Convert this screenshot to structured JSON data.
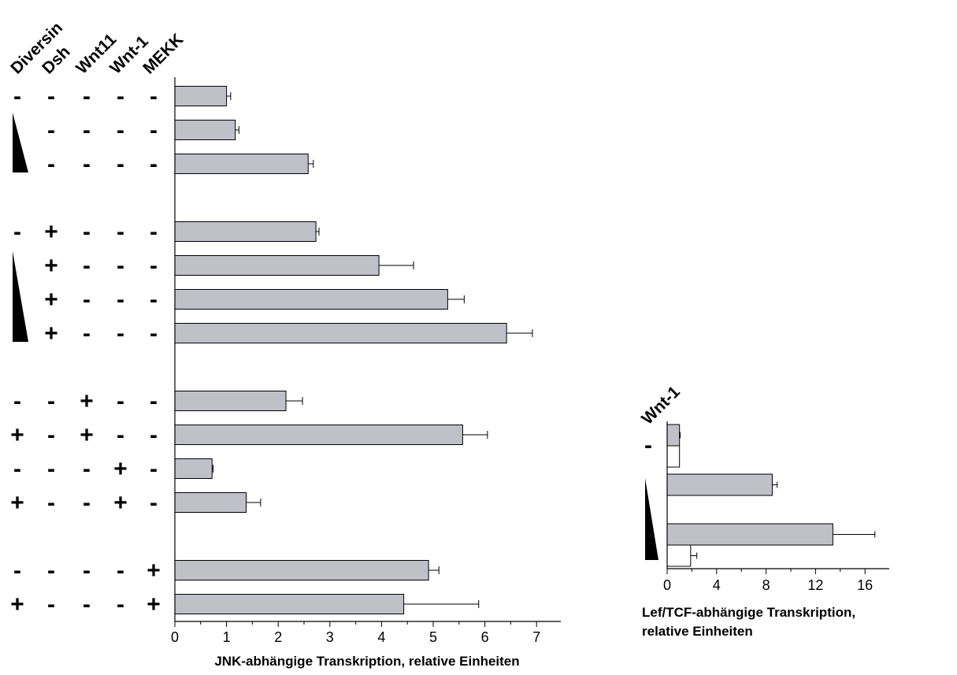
{
  "chart_data": [
    {
      "type": "bar",
      "orientation": "horizontal",
      "xlabel": "JNK-abhängige Transkription, relative Einheiten",
      "ylabel": "",
      "xlim": [
        0,
        7.5
      ],
      "xticks": [
        "0",
        "1",
        "2",
        "3",
        "4",
        "5",
        "6",
        "7"
      ],
      "grid": false,
      "legend": "none",
      "condition_headers": [
        "Diversin",
        "Dsh",
        "Wnt11",
        "Wnt-1",
        "MEKK"
      ],
      "groups": [
        {
          "rows": [
            {
              "marks": [
                "-",
                "-",
                "-",
                "-",
                "-"
              ],
              "value": 1.0,
              "error": 0.08
            },
            {
              "marks": [
                "ramp",
                "-",
                "-",
                "-",
                "-"
              ],
              "value": 1.17,
              "error": 0.07
            },
            {
              "marks": [
                "ramp",
                "-",
                "-",
                "-",
                "-"
              ],
              "value": 2.58,
              "error": 0.1
            }
          ]
        },
        {
          "rows": [
            {
              "marks": [
                "-",
                "+",
                "-",
                "-",
                "-"
              ],
              "value": 2.73,
              "error": 0.06
            },
            {
              "marks": [
                "ramp",
                "+",
                "-",
                "-",
                "-"
              ],
              "value": 3.95,
              "error": 0.67
            },
            {
              "marks": [
                "ramp",
                "+",
                "-",
                "-",
                "-"
              ],
              "value": 5.28,
              "error": 0.32
            },
            {
              "marks": [
                "ramp",
                "+",
                "-",
                "-",
                "-"
              ],
              "value": 6.42,
              "error": 0.5
            }
          ]
        },
        {
          "rows": [
            {
              "marks": [
                "-",
                "-",
                "+",
                "-",
                "-"
              ],
              "value": 2.15,
              "error": 0.32
            },
            {
              "marks": [
                "+",
                "-",
                "+",
                "-",
                "-"
              ],
              "value": 5.57,
              "error": 0.48
            },
            {
              "marks": [
                "-",
                "-",
                "-",
                "+",
                "-"
              ],
              "value": 0.72,
              "error": 0.02
            },
            {
              "marks": [
                "+",
                "-",
                "-",
                "+",
                "-"
              ],
              "value": 1.38,
              "error": 0.28
            }
          ]
        },
        {
          "rows": [
            {
              "marks": [
                "-",
                "-",
                "-",
                "-",
                "+"
              ],
              "value": 4.91,
              "error": 0.2
            },
            {
              "marks": [
                "+",
                "-",
                "-",
                "-",
                "+"
              ],
              "value": 4.43,
              "error": 1.45
            }
          ]
        }
      ],
      "bar_color": "#c0c0c8"
    },
    {
      "type": "bar",
      "orientation": "horizontal",
      "xlabel": "Lef/TCF-abhängige Transkription, relative Einheiten",
      "ylabel": "",
      "xlim": [
        0,
        18
      ],
      "xticks": [
        "0",
        "4",
        "8",
        "12",
        "16"
      ],
      "grid": false,
      "legend": "none",
      "condition_headers": [
        "Wnt-1"
      ],
      "rows": [
        {
          "mark": "-",
          "bars": [
            {
              "value": 1.0,
              "error": 0.05,
              "fill": "#c0c0c8"
            },
            {
              "value": 1.0,
              "error": 0.0,
              "fill": "#ffffff"
            }
          ]
        },
        {
          "mark": "ramp",
          "bars": [
            {
              "value": 8.5,
              "error": 0.4,
              "fill": "#c0c0c8"
            }
          ]
        },
        {
          "mark": "ramp",
          "bars": [
            {
              "value": 13.4,
              "error": 3.4,
              "fill": "#c0c0c8"
            },
            {
              "value": 1.9,
              "error": 0.5,
              "fill": "#ffffff"
            }
          ]
        }
      ]
    }
  ]
}
